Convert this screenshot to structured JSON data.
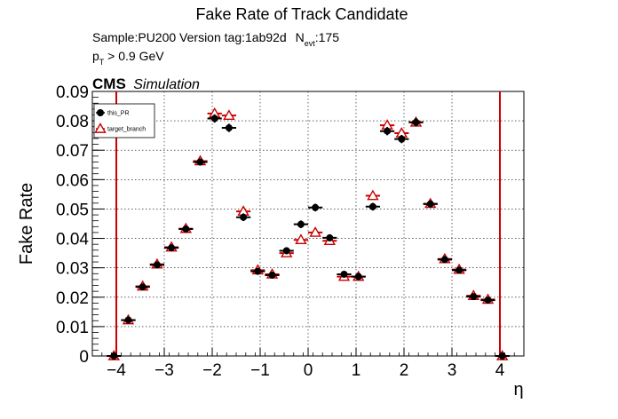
{
  "chart_data": {
    "type": "scatter",
    "title": "Fake Rate of Track Candidate",
    "sample_text": "Sample:PU200   Version tag:1ab92d",
    "nevt_label": "N",
    "nevt_sub": "evt",
    "nevt_value": ":175",
    "pt_label": "p",
    "pt_sub": "T",
    "pt_cut": " > 0.9 GeV",
    "cms_label": "CMS",
    "cms_sub": "Simulation",
    "xlabel": "η",
    "ylabel": "Fake Rate",
    "xlim": [
      -4.5,
      4.5
    ],
    "ylim": [
      0,
      0.09
    ],
    "xticks": [
      "−4",
      "−3",
      "−2",
      "−1",
      "0",
      "1",
      "2",
      "3",
      "4"
    ],
    "yticks": [
      "0",
      "0.01",
      "0.02",
      "0.03",
      "0.04",
      "0.05",
      "0.06",
      "0.07",
      "0.08",
      "0.09"
    ],
    "grid": true,
    "legend_position": "top-left",
    "vlines": [
      -4.0,
      4.0
    ],
    "vline_color": "#cc0000",
    "x_half_width": 0.15,
    "series": [
      {
        "name": "this_PR",
        "color": "#000000",
        "marker": "filled-circle",
        "x": [
          -4.05,
          -3.75,
          -3.45,
          -3.15,
          -2.85,
          -2.55,
          -2.25,
          -1.95,
          -1.65,
          -1.35,
          -1.05,
          -0.75,
          -0.45,
          -0.15,
          0.15,
          0.45,
          0.75,
          1.05,
          1.35,
          1.65,
          1.95,
          2.25,
          2.55,
          2.85,
          3.15,
          3.45,
          3.75,
          4.05
        ],
        "y": [
          0.0,
          0.0122,
          0.0235,
          0.031,
          0.0368,
          0.0432,
          0.066,
          0.0808,
          0.0776,
          0.0472,
          0.0288,
          0.0275,
          0.0358,
          0.0448,
          0.0505,
          0.0402,
          0.0278,
          0.027,
          0.0508,
          0.0765,
          0.0738,
          0.0795,
          0.0517,
          0.0328,
          0.0292,
          0.0202,
          0.019,
          0.0
        ],
        "yerr": [
          0.0,
          0.0008,
          0.0008,
          0.0008,
          0.0009,
          0.0009,
          0.0012,
          0.0014,
          0.0014,
          0.0013,
          0.0011,
          0.0011,
          0.0012,
          0.0013,
          0.0013,
          0.0012,
          0.0011,
          0.0011,
          0.0013,
          0.0014,
          0.0014,
          0.0014,
          0.0012,
          0.0009,
          0.0009,
          0.0008,
          0.0008,
          0.0
        ]
      },
      {
        "name": "target_branch",
        "color": "#cc0000",
        "marker": "open-triangle",
        "x": [
          -4.05,
          -3.75,
          -3.45,
          -3.15,
          -2.85,
          -2.55,
          -2.25,
          -1.95,
          -1.65,
          -1.35,
          -1.05,
          -0.75,
          -0.45,
          -0.15,
          0.15,
          0.45,
          0.75,
          1.05,
          1.35,
          1.65,
          1.95,
          2.25,
          2.55,
          2.85,
          3.15,
          3.45,
          3.75,
          4.05
        ],
        "y": [
          0.0,
          0.0122,
          0.0237,
          0.0312,
          0.037,
          0.0433,
          0.0663,
          0.0825,
          0.0818,
          0.0492,
          0.0292,
          0.0278,
          0.035,
          0.0395,
          0.042,
          0.0392,
          0.027,
          0.027,
          0.0545,
          0.0785,
          0.0758,
          0.0795,
          0.0518,
          0.033,
          0.0294,
          0.0205,
          0.0192,
          0.0
        ],
        "yerr": [
          0.0,
          0.0008,
          0.0008,
          0.0008,
          0.0009,
          0.0009,
          0.0012,
          0.0014,
          0.0014,
          0.0013,
          0.0011,
          0.0011,
          0.0012,
          0.0013,
          0.0013,
          0.0012,
          0.0011,
          0.0011,
          0.0013,
          0.0014,
          0.0014,
          0.0014,
          0.0012,
          0.0009,
          0.0009,
          0.0008,
          0.0008,
          0.0
        ]
      }
    ]
  }
}
